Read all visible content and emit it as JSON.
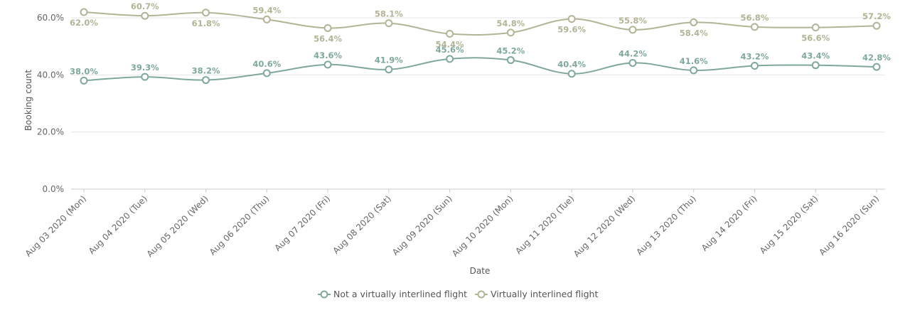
{
  "chart_data": {
    "type": "line",
    "xlabel": "Date",
    "ylabel": "Booking count",
    "ylim": [
      0,
      60
    ],
    "yticks": [
      0,
      20,
      40,
      60
    ],
    "ytick_labels": [
      "0.0%",
      "20.0%",
      "40.0%",
      "60.0%"
    ],
    "grid": true,
    "legend_position": "bottom-center",
    "categories": [
      "Aug 03 2020 (Mon)",
      "Aug 04 2020 (Tue)",
      "Aug 05 2020 (Wed)",
      "Aug 06 2020 (Thu)",
      "Aug 07 2020 (Fri)",
      "Aug 08 2020 (Sat)",
      "Aug 09 2020 (Sun)",
      "Aug 10 2020 (Mon)",
      "Aug 11 2020 (Tue)",
      "Aug 12 2020 (Wed)",
      "Aug 13 2020 (Thu)",
      "Aug 14 2020 (Fri)",
      "Aug 15 2020 (Sat)",
      "Aug 16 2020 (Sun)"
    ],
    "series": [
      {
        "name": "Not a virtually interlined flight",
        "color": "#7fa89d",
        "values": [
          38.0,
          39.3,
          38.2,
          40.6,
          43.6,
          41.9,
          45.6,
          45.2,
          40.4,
          44.2,
          41.6,
          43.2,
          43.4,
          42.8
        ],
        "labels": [
          "38.0%",
          "39.3%",
          "38.2%",
          "40.6%",
          "43.6%",
          "41.9%",
          "45.6%",
          "45.2%",
          "40.4%",
          "44.2%",
          "41.6%",
          "43.2%",
          "43.4%",
          "42.8%"
        ]
      },
      {
        "name": "Virtually interlined flight",
        "color": "#b3b496",
        "values": [
          62.0,
          60.7,
          61.8,
          59.4,
          56.4,
          58.1,
          54.4,
          54.8,
          59.6,
          55.8,
          58.4,
          56.8,
          56.6,
          57.2
        ],
        "labels": [
          "62.0%",
          "60.7%",
          "61.8%",
          "59.4%",
          "56.4%",
          "58.1%",
          "54.4%",
          "54.8%",
          "59.6%",
          "55.8%",
          "58.4%",
          "56.8%",
          "56.6%",
          "57.2%"
        ]
      }
    ]
  }
}
